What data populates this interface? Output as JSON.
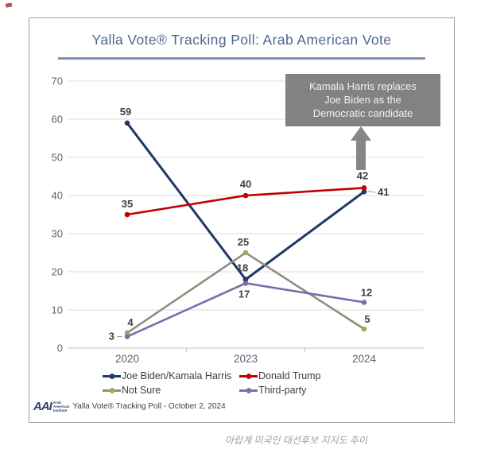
{
  "header": {
    "title": "Yalla Vote® Tracking Poll: Arab American Vote",
    "title_color": "#50658c",
    "rule_color": "#7e90b5"
  },
  "annotation": {
    "text": "Kamala Harris replaces\nJoe Biden as the\nDemocratic candidate",
    "bg_color": "#828282",
    "text_color": "#f2f2f2",
    "arrow_color": "#868686"
  },
  "chart_data": {
    "type": "line",
    "title": "Yalla Vote® Tracking Poll: Arab American Vote",
    "categories": [
      "2020",
      "2023",
      "2024"
    ],
    "series": [
      {
        "name": "Joe Biden/Kamala Harris",
        "color": "#1f3864",
        "values": [
          59,
          18,
          41
        ],
        "label_offsets": [
          {
            "dx": -2,
            "dy": -10,
            "anchor": "middle"
          },
          {
            "dx": -4,
            "dy": -10,
            "anchor": "middle"
          },
          {
            "dx": 17,
            "dy": 5,
            "anchor": "start",
            "leader": "right"
          }
        ]
      },
      {
        "name": "Donald Trump",
        "color": "#c00000",
        "values": [
          35,
          40,
          42
        ],
        "label_offsets": [
          {
            "dx": 0,
            "dy": -9,
            "anchor": "middle"
          },
          {
            "dx": 0,
            "dy": -10,
            "anchor": "middle"
          },
          {
            "dx": -2,
            "dy": -11,
            "anchor": "middle"
          }
        ]
      },
      {
        "name": "Not Sure",
        "color": "#8f8f7c",
        "marker_color": "#a4a45e",
        "values": [
          4,
          25,
          5
        ],
        "label_offsets": [
          {
            "dx": 4,
            "dy": -9,
            "anchor": "middle"
          },
          {
            "dx": -3,
            "dy": -9,
            "anchor": "middle"
          },
          {
            "dx": 4,
            "dy": -8,
            "anchor": "middle"
          }
        ]
      },
      {
        "name": "Third-party",
        "color": "#7e6aac",
        "values": [
          3,
          17,
          12
        ],
        "label_offsets": [
          {
            "dx": -16,
            "dy": 4,
            "anchor": "end",
            "leader": "left"
          },
          {
            "dx": -2,
            "dy": 18,
            "anchor": "middle"
          },
          {
            "dx": 3,
            "dy": -8,
            "anchor": "middle"
          }
        ]
      }
    ],
    "ylim": [
      0,
      70
    ],
    "ytick_step": 10,
    "grid": true,
    "legend_position": "bottom",
    "data_label_color": "#404040",
    "axis_tick_color": "#5a6473",
    "gridline_color": "#dcdcdc"
  },
  "footer": {
    "logo_text": "AAI",
    "logo_sub_lines": [
      "Arab",
      "American",
      "Institute"
    ],
    "source_text": "Yalla Vote® Tracking Poll - October 2, 2024"
  },
  "page": {
    "caption": "아랍계 미국인 대선후보 지지도 추이"
  }
}
